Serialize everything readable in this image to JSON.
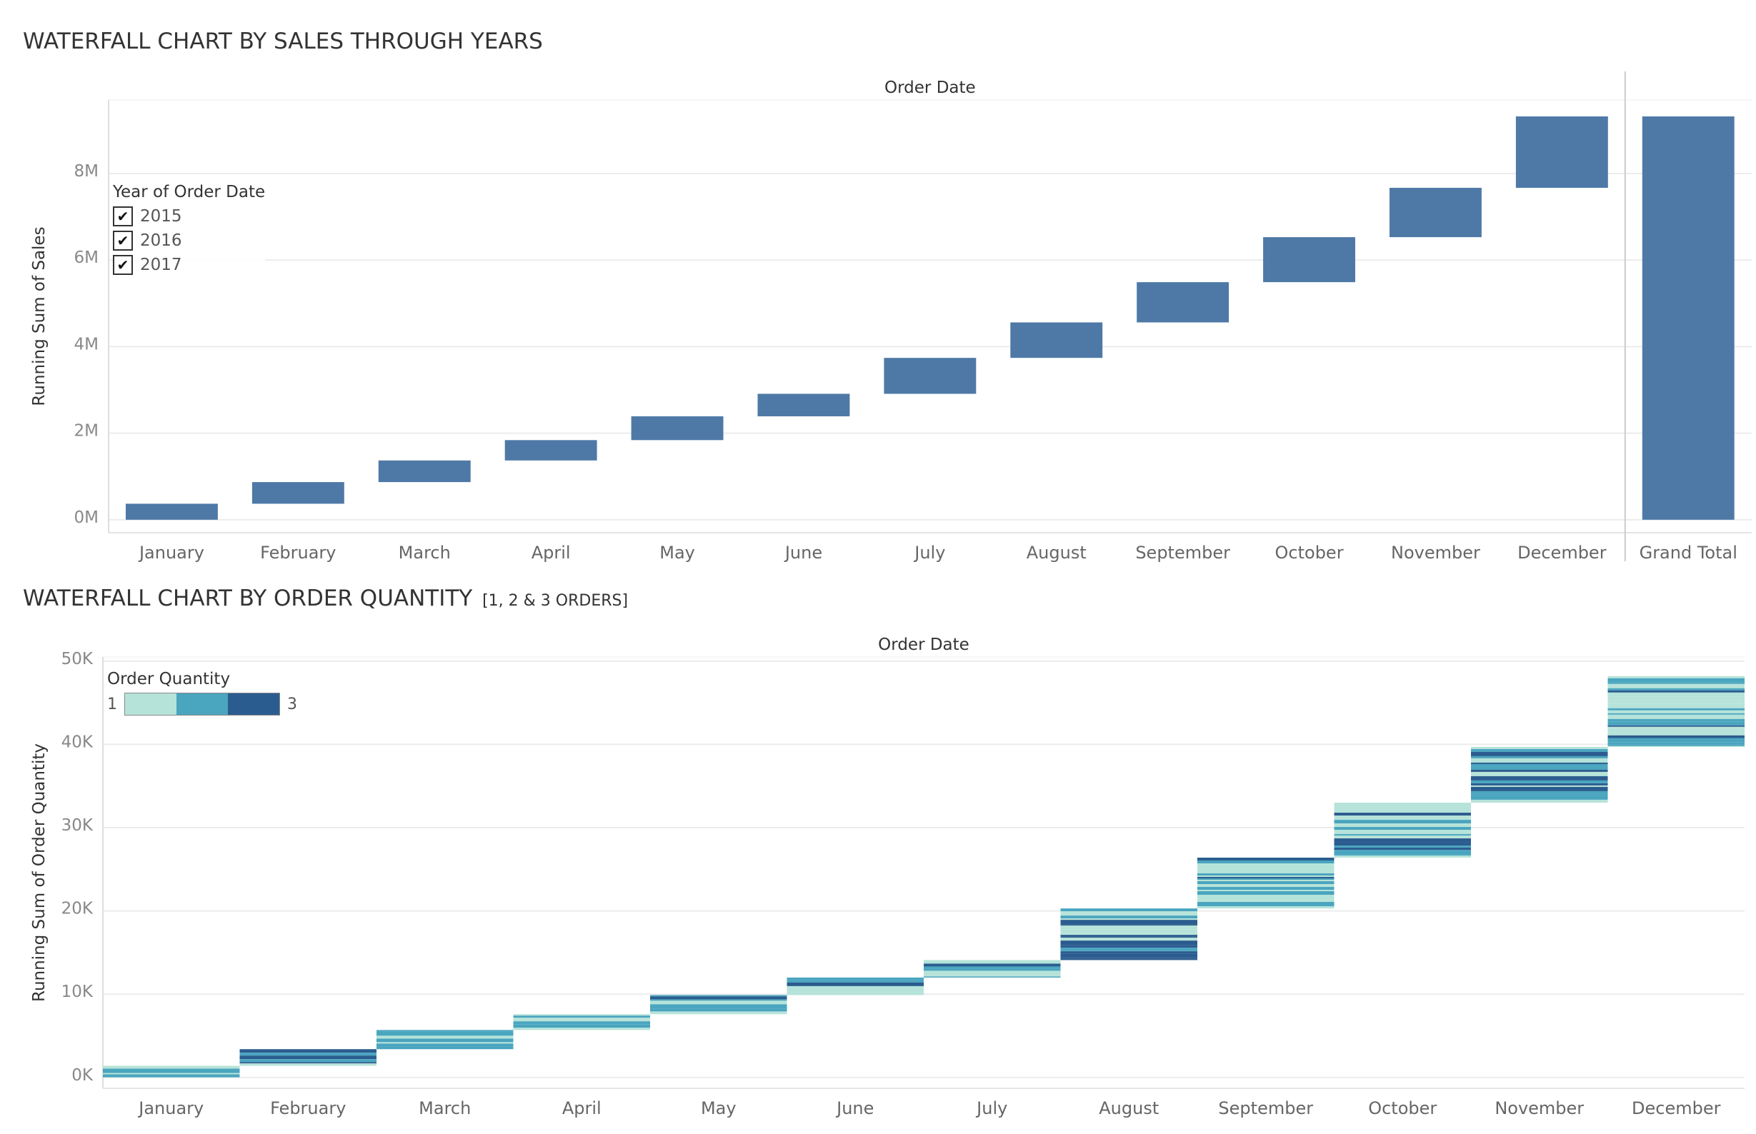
{
  "titles": {
    "chart1": "WATERFALL CHART BY SALES THROUGH YEARS",
    "chart2_main": "WATERFALL CHART BY ORDER QUANTITY",
    "chart2_sub": "[1, 2 & 3 ORDERS]"
  },
  "legend1": {
    "title": "Year of Order Date",
    "items": [
      {
        "label": "2015",
        "checked": true
      },
      {
        "label": "2016",
        "checked": true
      },
      {
        "label": "2017",
        "checked": true
      }
    ]
  },
  "legend2": {
    "title": "Order Quantity",
    "min_label": "1",
    "max_label": "3",
    "colors": [
      "#b6e3d9",
      "#4aa5bf",
      "#2b5c8f"
    ]
  },
  "chart_data": [
    {
      "type": "bar",
      "subtype": "waterfall",
      "column_header": "Order Date",
      "ylabel": "Running Sum of Sales",
      "categories": [
        "January",
        "February",
        "March",
        "April",
        "May",
        "June",
        "July",
        "August",
        "September",
        "October",
        "November",
        "December",
        "Grand Total"
      ],
      "starts": [
        0,
        0.37,
        0.87,
        1.37,
        1.84,
        2.39,
        2.91,
        3.74,
        4.56,
        5.49,
        6.53,
        7.67,
        0
      ],
      "ends": [
        0.37,
        0.87,
        1.37,
        1.84,
        2.39,
        2.91,
        3.74,
        4.56,
        5.49,
        6.53,
        7.67,
        9.32,
        9.32
      ],
      "unit": "M",
      "ylim": [
        -0.3,
        9.7
      ],
      "yticks": [
        0,
        2,
        4,
        6,
        8
      ],
      "ytick_labels": [
        "0M",
        "2M",
        "4M",
        "6M",
        "8M"
      ],
      "color": "#4e79a7",
      "grid": true
    },
    {
      "type": "bar",
      "subtype": "waterfall",
      "column_header": "Order Date",
      "ylabel": "Running Sum of Order Quantity",
      "categories": [
        "January",
        "February",
        "March",
        "April",
        "May",
        "June",
        "July",
        "August",
        "September",
        "October",
        "November",
        "December"
      ],
      "starts": [
        0,
        1.4,
        3.4,
        5.7,
        7.6,
        9.9,
        12.0,
        14.1,
        20.3,
        26.4,
        33.0,
        39.7
      ],
      "ends": [
        1.4,
        3.4,
        5.7,
        7.6,
        9.9,
        12.0,
        14.1,
        20.3,
        26.4,
        33.0,
        39.7,
        48.2
      ],
      "unit": "K",
      "ylim": [
        -1.3,
        50.5
      ],
      "yticks": [
        0,
        10,
        20,
        30,
        40,
        50
      ],
      "ytick_labels": [
        "0K",
        "10K",
        "20K",
        "30K",
        "40K",
        "50K"
      ],
      "segment_colors": [
        "#b6e3d9",
        "#4aa5bf",
        "#2b5c8f"
      ],
      "grid": true
    }
  ]
}
